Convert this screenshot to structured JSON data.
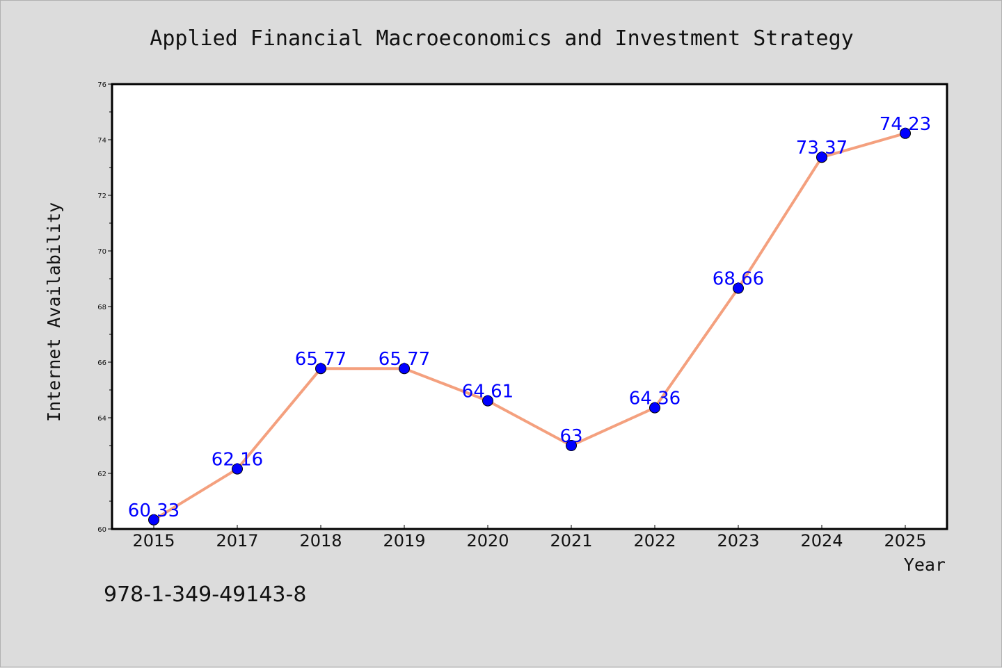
{
  "chart_data": {
    "type": "line",
    "title": "Applied Financial Macroeconomics and Investment Strategy",
    "xlabel": "Year",
    "ylabel": "Internet Availability",
    "categories": [
      "2015",
      "2017",
      "2018",
      "2019",
      "2020",
      "2021",
      "2022",
      "2023",
      "2024",
      "2025"
    ],
    "values": [
      60.33,
      62.16,
      65.77,
      65.77,
      64.61,
      63,
      64.36,
      68.66,
      73.37,
      74.23
    ],
    "data_labels": [
      "60.33",
      "62.16",
      "65.77",
      "65.77",
      "64.61",
      "63",
      "64.36",
      "68.66",
      "73.37",
      "74.23"
    ],
    "ylim": [
      60,
      76
    ],
    "yticks": [
      60,
      62,
      64,
      66,
      68,
      70,
      72,
      74,
      76
    ],
    "grid": false,
    "line_color": "#f4a07e",
    "marker_color": "#0000ff",
    "label_color": "#0000ff"
  },
  "footer": {
    "code": "978-1-349-49143-8"
  }
}
